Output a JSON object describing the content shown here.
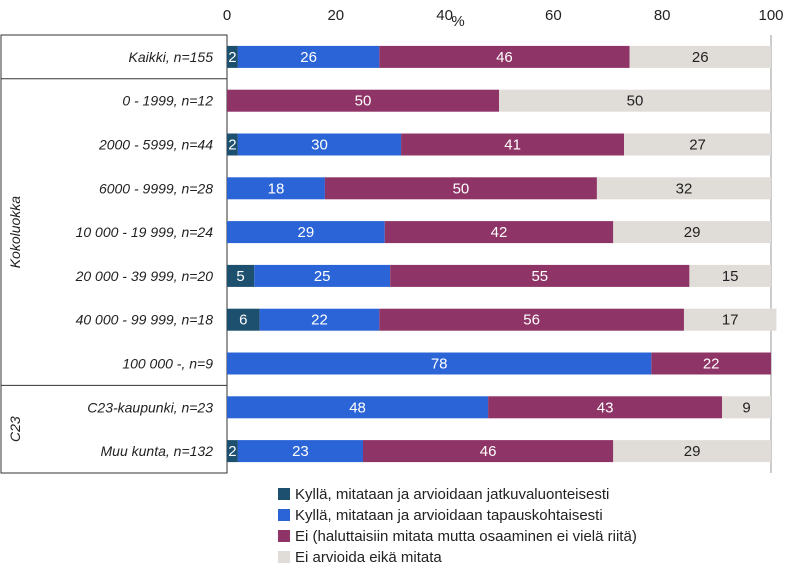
{
  "chart_data": {
    "type": "bar",
    "orientation": "horizontal",
    "stacked": true,
    "xlabel": "%",
    "xlim": [
      0,
      100
    ],
    "xticks": [
      "0",
      "20",
      "40",
      "60",
      "80",
      "100"
    ],
    "grid": false,
    "legend_position": "bottom",
    "groups": [
      {
        "label": "",
        "categories": [
          "Kaikki, n=155"
        ]
      },
      {
        "label": "Kokoluokka",
        "categories": [
          "0 - 1999, n=12",
          "2000 - 5999, n=44",
          "6000 - 9999, n=28",
          "10 000 - 19 999, n=24",
          "20 000 - 39 999, n=20",
          "40 000 - 99 999, n=18",
          "100 000 -, n=9"
        ]
      },
      {
        "label": "C23",
        "categories": [
          "C23-kaupunki, n=23",
          "Muu kunta, n=132"
        ]
      }
    ],
    "categories": [
      "Kaikki, n=155",
      "0 - 1999, n=12",
      "2000 - 5999, n=44",
      "6000 - 9999, n=28",
      "10 000 - 19 999, n=24",
      "20 000 - 39 999, n=20",
      "40 000 - 99 999, n=18",
      "100 000 -, n=9",
      "C23-kaupunki, n=23",
      "Muu kunta, n=132"
    ],
    "series": [
      {
        "name": "Kyllä, mitataan ja arvioidaan jatkuvaluonteisesti",
        "color": "#1d4f6e",
        "text_color": "#ffffff",
        "values": [
          2,
          0,
          2,
          0,
          0,
          5,
          6,
          0,
          0,
          2
        ]
      },
      {
        "name": "Kyllä, mitataan ja arvioidaan tapauskohtaisesti",
        "color": "#2b64d6",
        "text_color": "#ffffff",
        "values": [
          26,
          0,
          30,
          18,
          29,
          25,
          22,
          78,
          48,
          23
        ]
      },
      {
        "name": "Ei (haluttaisiin mitata mutta osaaminen ei vielä riitä)",
        "color": "#8e3466",
        "text_color": "#ffffff",
        "values": [
          46,
          50,
          41,
          50,
          42,
          55,
          56,
          22,
          43,
          46
        ]
      },
      {
        "name": "Ei arvioida eikä mitata",
        "color": "#e0dcd8",
        "text_color": "#222222",
        "values": [
          26,
          50,
          27,
          32,
          29,
          15,
          17,
          0,
          9,
          29
        ]
      }
    ]
  }
}
